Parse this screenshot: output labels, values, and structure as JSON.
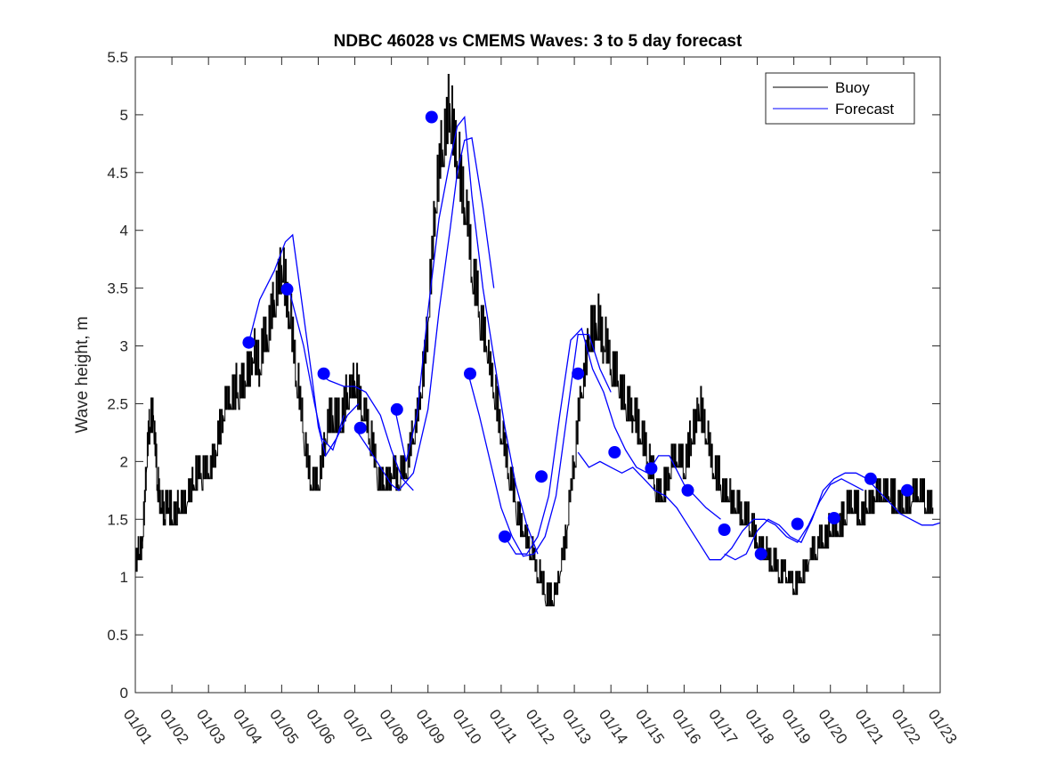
{
  "chart_data": {
    "type": "line",
    "title": "NDBC 46028 vs CMEMS Waves: 3 to 5 day forecast",
    "xlabel": "",
    "ylabel": "Wave height, m",
    "ylim": [
      0,
      5.5
    ],
    "xlim": [
      0,
      22
    ],
    "yticks": [
      0,
      0.5,
      1,
      1.5,
      2,
      2.5,
      3,
      3.5,
      4,
      4.5,
      5,
      5.5
    ],
    "ytick_labels": [
      "0",
      "0.5",
      "1",
      "1.5",
      "2",
      "2.5",
      "3",
      "3.5",
      "4",
      "4.5",
      "5",
      "5.5"
    ],
    "xtick_labels": [
      "01/01",
      "01/02",
      "01/03",
      "01/04",
      "01/05",
      "01/06",
      "01/07",
      "01/08",
      "01/09",
      "01/10",
      "01/11",
      "01/12",
      "01/13",
      "01/14",
      "01/15",
      "01/16",
      "01/17",
      "01/18",
      "01/19",
      "01/20",
      "01/21",
      "01/22",
      "01/23"
    ],
    "legend": {
      "location": "top-right",
      "entries": [
        "Buoy",
        "Forecast"
      ]
    },
    "colors": {
      "buoy": "#000000",
      "forecast": "#0000ff",
      "axes": "#262626"
    },
    "series": [
      {
        "name": "Buoy",
        "x": [
          0,
          0.1,
          0.2,
          0.3,
          0.4,
          0.5,
          0.6,
          0.7,
          0.8,
          0.9,
          1.0,
          1.2,
          1.4,
          1.6,
          1.8,
          2.0,
          2.2,
          2.4,
          2.6,
          2.8,
          3.0,
          3.2,
          3.4,
          3.6,
          3.8,
          4.0,
          4.2,
          4.4,
          4.6,
          4.8,
          5.0,
          5.2,
          5.4,
          5.6,
          5.8,
          6.0,
          6.2,
          6.4,
          6.6,
          6.8,
          7.0,
          7.2,
          7.4,
          7.6,
          7.8,
          8.0,
          8.2,
          8.4,
          8.6,
          8.8,
          9.0,
          9.2,
          9.4,
          9.6,
          9.8,
          10.0,
          10.2,
          10.4,
          10.6,
          10.8,
          11.0,
          11.2,
          11.4,
          11.6,
          11.8,
          12.0,
          12.2,
          12.4,
          12.6,
          12.8,
          13.0,
          13.2,
          13.4,
          13.6,
          13.8,
          14.0,
          14.2,
          14.4,
          14.6,
          14.8,
          15.0,
          15.2,
          15.4,
          15.6,
          15.8,
          16.0,
          16.2,
          16.4,
          16.6,
          16.8,
          17.0,
          17.2,
          17.4,
          17.6,
          17.8,
          18.0,
          18.2,
          18.4,
          18.6,
          18.8,
          19.0,
          19.2,
          19.4,
          19.6,
          19.8,
          20.0,
          20.2,
          20.4,
          20.6,
          20.8,
          21.0,
          21.2,
          21.4,
          21.6,
          21.8
        ],
        "values": [
          1.1,
          1.2,
          1.3,
          1.9,
          2.3,
          2.4,
          1.8,
          1.6,
          1.5,
          1.6,
          1.5,
          1.6,
          1.6,
          1.8,
          1.9,
          1.9,
          2.1,
          2.4,
          2.5,
          2.6,
          2.7,
          2.9,
          2.8,
          3.1,
          3.4,
          3.7,
          3.3,
          2.7,
          2.2,
          1.8,
          1.8,
          2.2,
          2.4,
          2.3,
          2.6,
          2.7,
          2.4,
          2.2,
          1.9,
          1.8,
          1.9,
          1.8,
          1.9,
          2.2,
          2.6,
          3.2,
          4.2,
          4.7,
          5.1,
          4.6,
          4.2,
          3.6,
          3.3,
          3.0,
          2.6,
          2.2,
          1.9,
          1.6,
          1.4,
          1.2,
          1.0,
          0.8,
          0.8,
          1.0,
          1.4,
          2.0,
          2.6,
          3.1,
          3.2,
          3.0,
          2.8,
          2.7,
          2.5,
          2.4,
          2.2,
          2.0,
          1.8,
          1.7,
          1.9,
          2.0,
          1.9,
          2.2,
          2.5,
          2.2,
          1.9,
          1.8,
          1.7,
          1.6,
          1.5,
          1.4,
          1.3,
          1.2,
          1.1,
          1.0,
          1.0,
          0.9,
          1.0,
          1.1,
          1.2,
          1.3,
          1.4,
          1.4,
          1.5,
          1.6,
          1.5,
          1.6,
          1.7,
          1.7,
          1.7,
          1.6,
          1.6,
          1.6,
          1.7,
          1.6,
          1.6
        ]
      },
      {
        "name": "Forecast",
        "segments": [
          {
            "x": [
              3.1,
              3.4,
              3.8,
              4.1,
              4.3,
              4.5,
              4.8,
              5.0,
              5.2,
              5.5,
              5.8,
              6.1
            ],
            "values": [
              3.03,
              3.4,
              3.65,
              3.9,
              3.96,
              3.5,
              2.8,
              2.3,
              2.05,
              2.2,
              2.4,
              2.5
            ]
          },
          {
            "x": [
              4.2,
              4.6,
              4.9,
              5.1,
              5.4,
              5.7
            ],
            "values": [
              3.49,
              3.0,
              2.5,
              2.2,
              2.1,
              2.4
            ]
          },
          {
            "x": [
              5.0,
              5.3,
              5.7,
              6.0,
              6.3,
              6.7,
              7.0,
              7.3,
              7.6
            ],
            "values": [
              2.76,
              2.7,
              2.65,
              2.65,
              2.6,
              2.4,
              2.1,
              1.85,
              1.75
            ]
          },
          {
            "x": [
              6.0,
              6.4,
              6.8,
              7.0,
              7.2,
              7.6,
              8.0,
              8.3,
              8.6,
              8.8,
              9.0,
              9.2,
              9.5,
              9.8
            ],
            "values": [
              2.29,
              2.1,
              1.9,
              1.8,
              1.75,
              1.9,
              2.45,
              3.3,
              4.0,
              4.5,
              4.78,
              4.8,
              4.2,
              3.5
            ]
          },
          {
            "x": [
              7.1,
              7.4,
              7.7,
              8.0,
              8.3,
              8.6,
              8.8,
              9.0,
              9.2,
              9.5,
              9.8,
              10.1,
              10.4,
              10.7,
              11.0
            ],
            "values": [
              2.45,
              2.0,
              2.4,
              3.3,
              4.1,
              4.6,
              4.9,
              4.98,
              4.3,
              3.5,
              2.9,
              2.3,
              1.8,
              1.45,
              1.2
            ]
          },
          {
            "x": [
              9.1,
              9.4,
              9.7,
              10.0,
              10.3,
              10.6,
              10.9,
              11.2,
              11.5,
              11.8,
              12.1,
              12.4,
              12.7,
              13.0
            ],
            "values": [
              2.76,
              2.4,
              2.0,
              1.6,
              1.35,
              1.18,
              1.2,
              1.35,
              1.7,
              2.4,
              3.1,
              3.1,
              2.8,
              2.6
            ]
          },
          {
            "x": [
              10.1,
              10.4,
              10.7,
              11.0,
              11.3,
              11.6,
              11.9,
              12.2,
              12.5,
              12.8,
              13.1,
              13.4,
              13.7,
              14.0,
              14.3,
              14.6,
              15.0,
              15.3,
              15.6,
              16.0
            ],
            "values": [
              1.35,
              1.2,
              1.2,
              1.35,
              1.7,
              2.4,
              3.05,
              3.15,
              2.8,
              2.6,
              2.3,
              2.1,
              1.95,
              1.9,
              2.05,
              2.05,
              1.8,
              1.7,
              1.6,
              1.5
            ]
          },
          {
            "x": [
              12.1,
              12.4,
              12.7,
              13.0,
              13.3,
              13.6,
              13.9,
              14.2,
              14.5,
              14.8,
              15.1,
              15.4,
              15.7,
              16.0,
              16.3,
              16.6,
              16.9,
              17.2,
              17.5,
              17.8,
              18.1,
              18.4,
              18.7,
              19.0,
              19.3,
              19.6,
              19.9
            ],
            "values": [
              2.08,
              1.95,
              2.0,
              1.95,
              1.9,
              1.95,
              1.85,
              1.75,
              1.7,
              1.6,
              1.45,
              1.3,
              1.15,
              1.15,
              1.25,
              1.4,
              1.5,
              1.5,
              1.45,
              1.35,
              1.3,
              1.45,
              1.65,
              1.8,
              1.85,
              1.8,
              1.75
            ]
          },
          {
            "x": [
              16.1,
              16.4,
              16.7,
              17.0,
              17.3,
              17.6,
              17.9,
              18.2,
              18.5,
              18.8,
              19.1,
              19.4,
              19.7,
              20.0,
              20.3,
              20.6,
              20.9,
              21.2,
              21.5,
              21.8,
              22.0
            ],
            "values": [
              1.2,
              1.15,
              1.2,
              1.4,
              1.5,
              1.45,
              1.35,
              1.3,
              1.5,
              1.75,
              1.85,
              1.9,
              1.9,
              1.85,
              1.75,
              1.65,
              1.55,
              1.5,
              1.45,
              1.45,
              1.47
            ]
          }
        ],
        "markers": {
          "x": [
            3.1,
            4.15,
            5.15,
            6.15,
            7.15,
            8.1,
            9.15,
            10.1,
            11.1,
            12.1,
            13.1,
            14.1,
            15.1,
            16.1,
            17.1,
            18.1,
            19.1,
            20.1,
            21.1
          ],
          "values": [
            3.03,
            3.49,
            2.76,
            2.29,
            2.45,
            4.98,
            2.76,
            1.35,
            1.87,
            2.76,
            2.08,
            1.94,
            1.75,
            1.41,
            1.2,
            1.46,
            1.51,
            1.85,
            1.75
          ]
        }
      }
    ]
  }
}
